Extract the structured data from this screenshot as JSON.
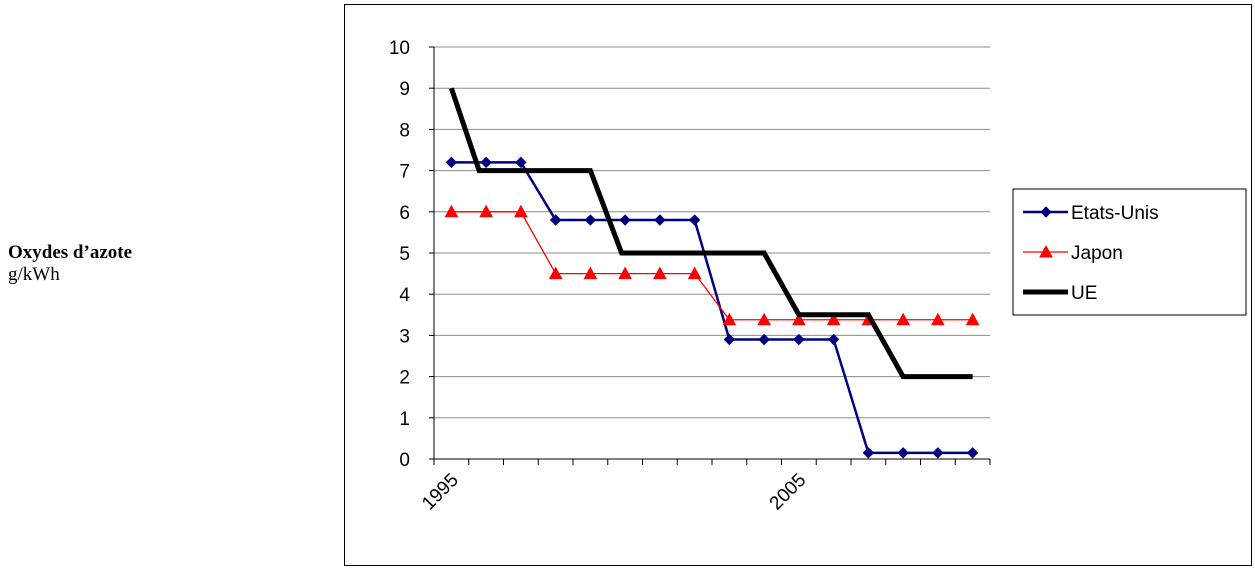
{
  "side_label": {
    "title": "Oxydes d’azote",
    "unit": "g/kWh"
  },
  "chart_data": {
    "type": "line",
    "ylim": [
      0,
      10
    ],
    "y_ticks": [
      "0",
      "1",
      "2",
      "3",
      "4",
      "5",
      "6",
      "7",
      "8",
      "9",
      "10"
    ],
    "x": [
      1995,
      1996,
      1997,
      1998,
      1999,
      2000,
      2001,
      2002,
      2003,
      2004,
      2005,
      2006,
      2007,
      2008,
      2009,
      2010
    ],
    "x_tick_labels": [
      {
        "x": 1995,
        "label": "1995"
      },
      {
        "x": 2005,
        "label": "2005"
      }
    ],
    "grid": "horizontal",
    "legend_position": "right",
    "series": [
      {
        "name": "Etats-Unis",
        "color": "#000080",
        "marker": "diamond",
        "values": [
          7.2,
          7.2,
          7.2,
          5.8,
          5.8,
          5.8,
          5.8,
          5.8,
          2.9,
          2.9,
          2.9,
          2.9,
          0.15,
          0.15,
          0.15,
          0.15
        ]
      },
      {
        "name": "Japon",
        "color": "#ff0000",
        "marker": "triangle",
        "values": [
          6.0,
          6.0,
          6.0,
          4.5,
          4.5,
          4.5,
          4.5,
          4.5,
          3.38,
          3.38,
          3.38,
          3.38,
          3.38,
          3.38,
          3.38,
          3.38
        ]
      },
      {
        "name": "UE",
        "color": "#000000",
        "marker": "none",
        "points": [
          [
            1995,
            9.0
          ],
          [
            1995.8,
            7.0
          ],
          [
            1999,
            7.0
          ],
          [
            1999.9,
            5.0
          ],
          [
            2004,
            5.0
          ],
          [
            2005,
            3.5
          ],
          [
            2007,
            3.5
          ],
          [
            2008,
            2.0
          ],
          [
            2010,
            2.0
          ]
        ]
      }
    ]
  }
}
